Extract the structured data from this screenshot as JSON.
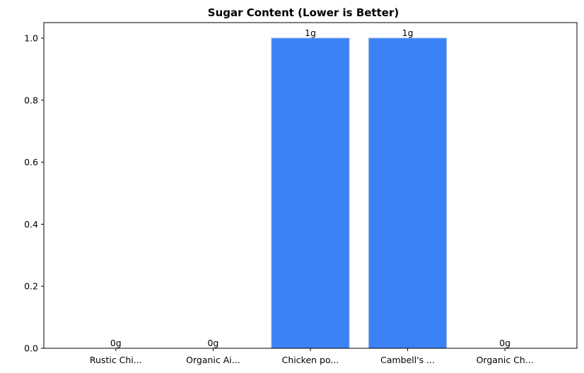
{
  "chart_data": {
    "type": "bar",
    "title": "Sugar Content (Lower is Better)",
    "categories": [
      "Rustic Chi...",
      "Organic Ai...",
      "Chicken po...",
      "Cambell's ...",
      "Organic Ch..."
    ],
    "values": [
      0,
      0,
      1,
      1,
      0
    ],
    "data_labels": [
      "0g",
      "0g",
      "1g",
      "1g",
      "0g"
    ],
    "ylim": [
      0,
      1.05
    ],
    "yticks": [
      0.0,
      0.2,
      0.4,
      0.6,
      0.8,
      1.0
    ],
    "ytick_labels": [
      "0.0",
      "0.2",
      "0.4",
      "0.6",
      "0.8",
      "1.0"
    ],
    "xlabel": "",
    "ylabel": "",
    "grid": false,
    "bar_color": "#3b82f6",
    "bar_edge_color": "#93b4e8"
  }
}
